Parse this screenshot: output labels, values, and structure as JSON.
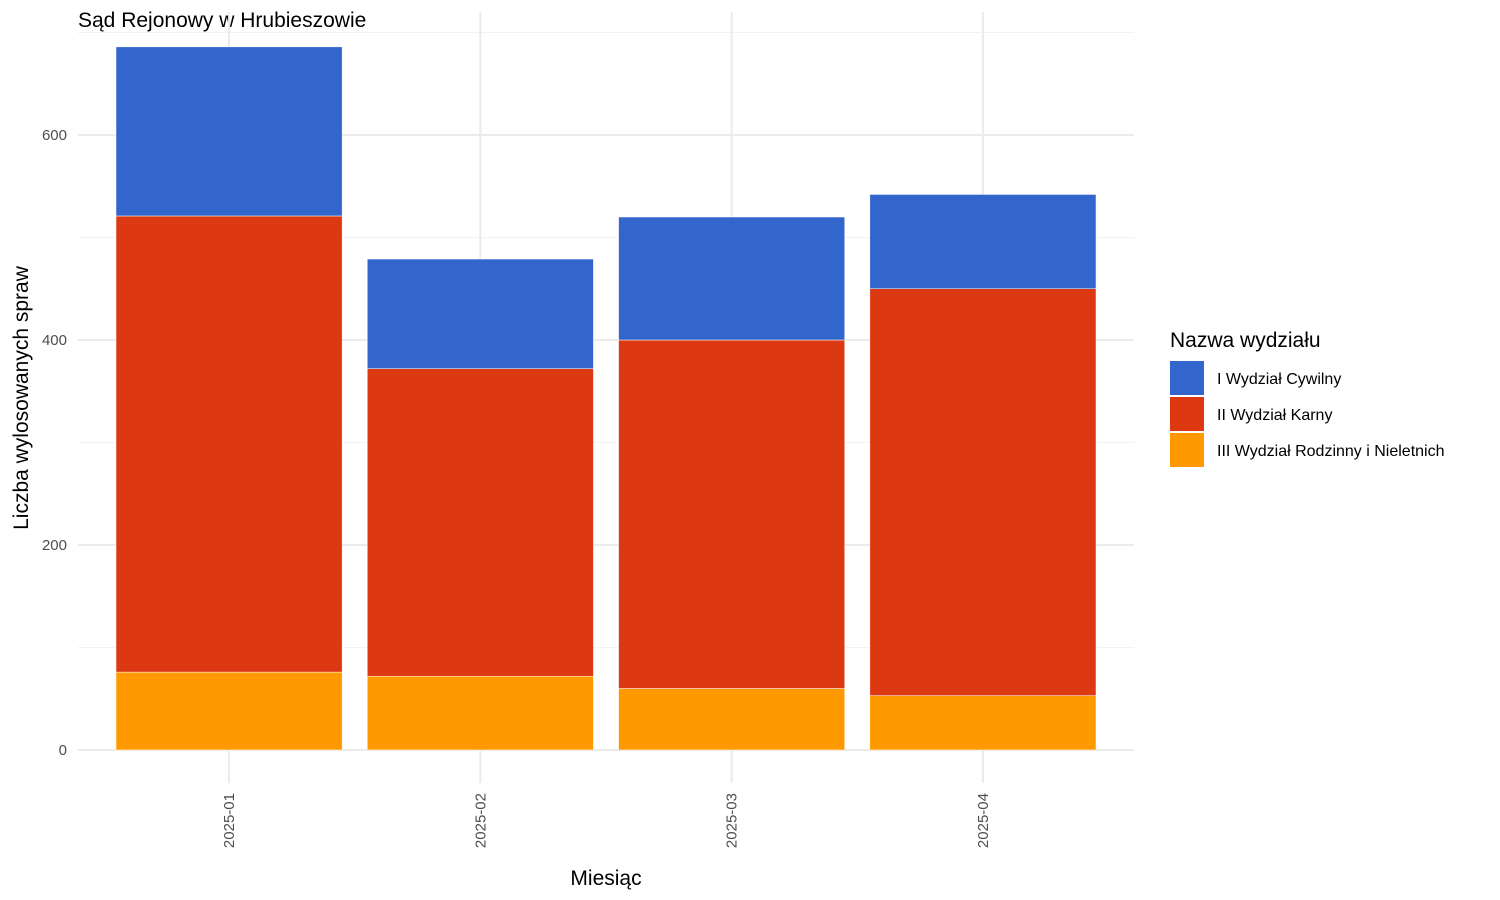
{
  "chart_data": {
    "type": "bar",
    "stacked": true,
    "title": "Sąd Rejonowy w Hrubieszowie",
    "xlabel": "Miesiąc",
    "ylabel": "Liczba wylosowanych spraw",
    "categories": [
      "2025-01",
      "2025-02",
      "2025-03",
      "2025-04"
    ],
    "y_ticks": [
      "0",
      "200",
      "400",
      "600"
    ],
    "ylim": [
      -30,
      705
    ],
    "grid": true,
    "legend": {
      "title": "Nazwa wydziału",
      "position": "right"
    },
    "series": [
      {
        "name": "III Wydział Rodzinny i Nieletnich",
        "color": "#FF9900",
        "values": [
          76,
          72,
          60,
          53
        ]
      },
      {
        "name": "II Wydział Karny",
        "color": "#DC3912",
        "values": [
          445,
          300,
          340,
          397
        ]
      },
      {
        "name": "I Wydział Cywilny",
        "color": "#3366CC",
        "values": [
          165,
          107,
          120,
          92
        ]
      }
    ],
    "legend_order": [
      "I Wydział Cywilny",
      "II Wydział Karny",
      "III Wydział Rodzinny i Nieletnich"
    ]
  }
}
